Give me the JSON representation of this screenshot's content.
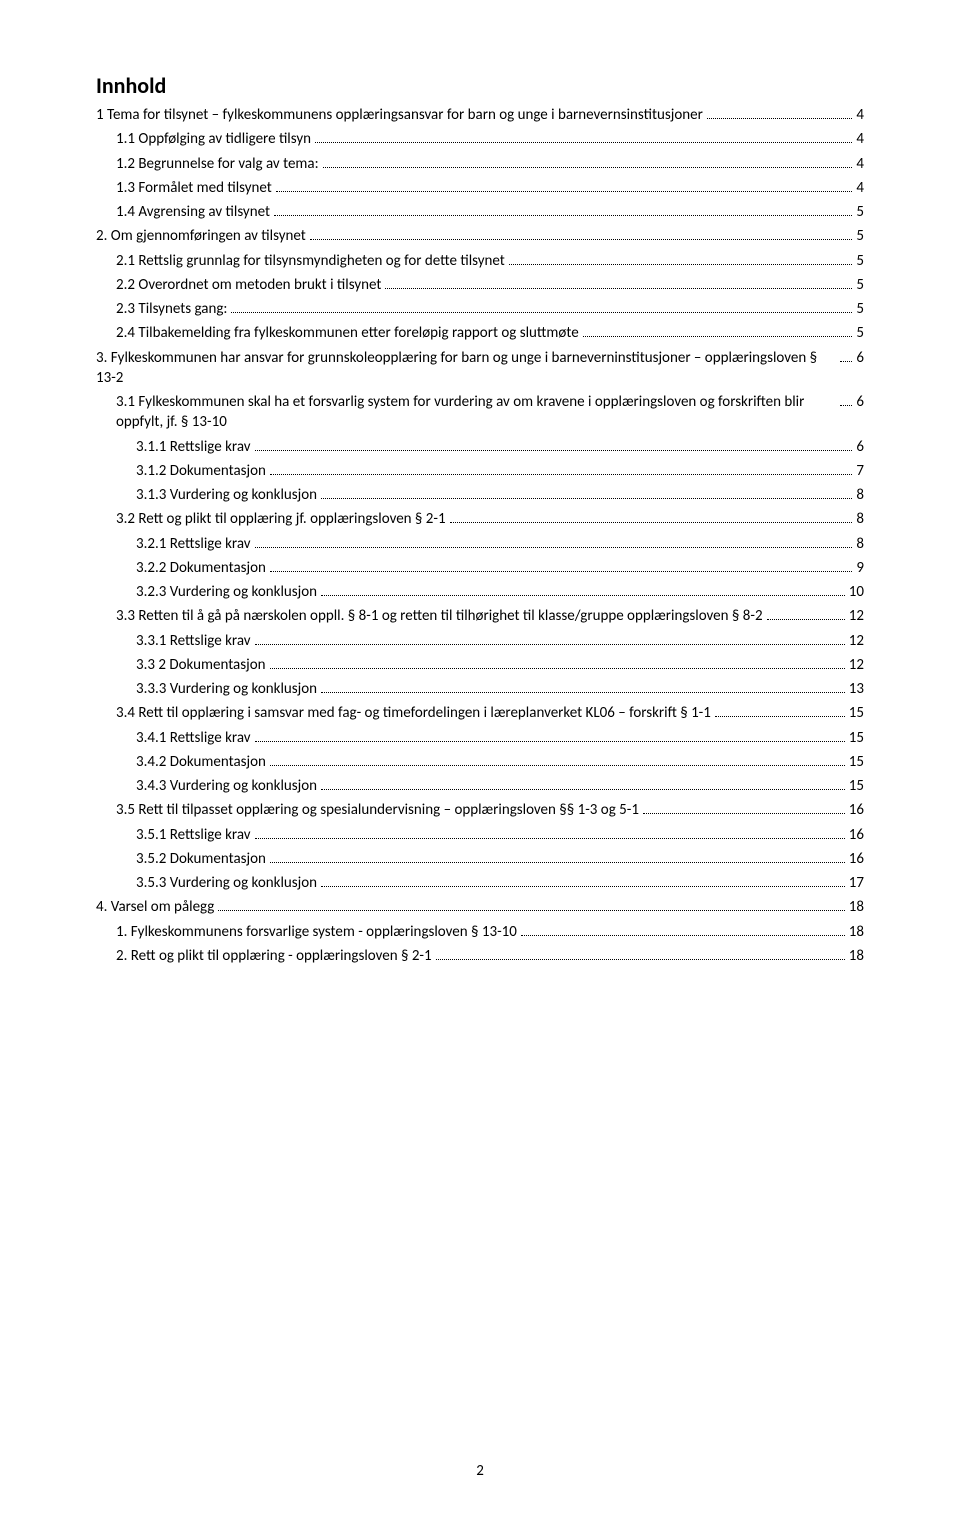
{
  "heading": "Innhold",
  "page_number": "2",
  "entries": [
    {
      "indent": 0,
      "label": "1 Tema for tilsynet – fylkeskommunens opplæringsansvar for barn og unge i barnevernsinstitusjoner",
      "page": "4"
    },
    {
      "indent": 1,
      "label": "1.1 Oppfølging av tidligere tilsyn",
      "page": "4"
    },
    {
      "indent": 1,
      "label": "1.2 Begrunnelse for valg av tema:",
      "page": "4"
    },
    {
      "indent": 1,
      "label": "1.3 Formålet med tilsynet",
      "page": "4"
    },
    {
      "indent": 1,
      "label": "1.4 Avgrensing av tilsynet",
      "page": "5"
    },
    {
      "indent": 0,
      "label": "2. Om gjennomføringen av tilsynet",
      "page": "5"
    },
    {
      "indent": 1,
      "label": "2.1 Rettslig grunnlag for tilsynsmyndigheten og for dette tilsynet",
      "page": "5"
    },
    {
      "indent": 1,
      "label": "2.2 Overordnet om metoden brukt i tilsynet",
      "page": "5"
    },
    {
      "indent": 1,
      "label": "2.3 Tilsynets gang:",
      "page": "5"
    },
    {
      "indent": 1,
      "label": "2.4 Tilbakemelding fra fylkeskommunen etter foreløpig rapport og sluttmøte",
      "page": "5"
    },
    {
      "indent": 0,
      "label": "3. Fylkeskommunen har ansvar for grunnskoleopplæring for barn og unge i barneverninstitusjoner – opplæringsloven § 13-2",
      "page": "6"
    },
    {
      "indent": 1,
      "label": "3.1 Fylkeskommunen skal ha et forsvarlig system for vurdering av om kravene i opplæringsloven og forskriften blir oppfylt, jf. § 13-10",
      "page": "6"
    },
    {
      "indent": 2,
      "label": "3.1.1 Rettslige krav",
      "page": "6"
    },
    {
      "indent": 2,
      "label": "3.1.2 Dokumentasjon",
      "page": "7"
    },
    {
      "indent": 2,
      "label": "3.1.3 Vurdering og konklusjon",
      "page": "8"
    },
    {
      "indent": 1,
      "label": "3.2 Rett og plikt til opplæring jf. opplæringsloven § 2-1",
      "page": "8"
    },
    {
      "indent": 2,
      "label": "3.2.1 Rettslige krav",
      "page": "8"
    },
    {
      "indent": 2,
      "label": "3.2.2 Dokumentasjon",
      "page": "9"
    },
    {
      "indent": 2,
      "label": "3.2.3 Vurdering og konklusjon",
      "page": "10"
    },
    {
      "indent": 1,
      "label": "3.3 Retten til å gå på nærskolen oppll. § 8-1 og retten til tilhørighet til klasse/gruppe opplæringsloven § 8-2",
      "page": "12"
    },
    {
      "indent": 2,
      "label": "3.3.1 Rettslige krav",
      "page": "12"
    },
    {
      "indent": 2,
      "label": "3.3 2 Dokumentasjon",
      "page": "12"
    },
    {
      "indent": 2,
      "label": "3.3.3 Vurdering og konklusjon",
      "page": "13"
    },
    {
      "indent": 1,
      "label": "3.4 Rett til opplæring i samsvar med fag- og timefordelingen i læreplanverket KL06 – forskrift § 1-1",
      "page": "15"
    },
    {
      "indent": 2,
      "label": "3.4.1 Rettslige krav",
      "page": "15"
    },
    {
      "indent": 2,
      "label": "3.4.2 Dokumentasjon",
      "page": "15"
    },
    {
      "indent": 2,
      "label": "3.4.3 Vurdering og konklusjon",
      "page": "15"
    },
    {
      "indent": 1,
      "label": "3.5 Rett til tilpasset opplæring og spesialundervisning – opplæringsloven §§ 1-3 og 5-1",
      "page": "16"
    },
    {
      "indent": 2,
      "label": "3.5.1 Rettslige krav",
      "page": "16"
    },
    {
      "indent": 2,
      "label": "3.5.2 Dokumentasjon",
      "page": "16"
    },
    {
      "indent": 2,
      "label": "3.5.3 Vurdering og konklusjon",
      "page": "17"
    },
    {
      "indent": 0,
      "label": "4. Varsel om pålegg",
      "page": "18"
    },
    {
      "indent": 1,
      "label": "1. Fylkeskommunens forsvarlige system - opplæringsloven § 13-10",
      "page": "18"
    },
    {
      "indent": 1,
      "label": "2. Rett og plikt til opplæring - opplæringsloven § 2-1",
      "page": "18"
    }
  ]
}
